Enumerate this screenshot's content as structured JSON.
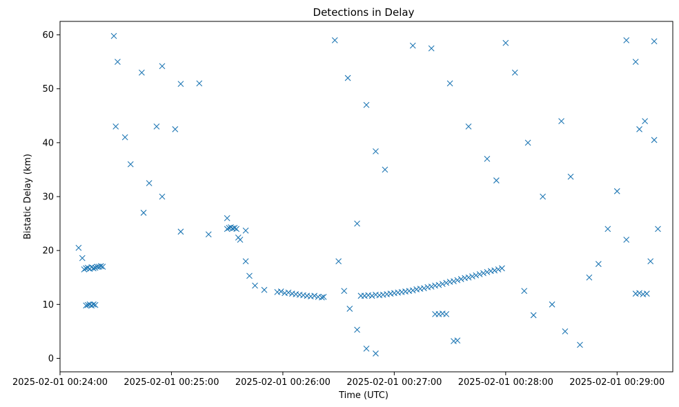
{
  "chart_data": {
    "type": "scatter",
    "title": "Detections in Delay",
    "xlabel": "Time (UTC)",
    "ylabel": "Bistatic Delay (km)",
    "marker": "x",
    "color": "#1f77b4",
    "grid": false,
    "legend": "none",
    "x_unit": "time (UTC)",
    "xlim": [
      "2025-02-01 00:24:00",
      "2025-02-01 00:29:30"
    ],
    "ylim": [
      -2.5,
      62.5
    ],
    "x_ticks": [
      "2025-02-01 00:24:00",
      "2025-02-01 00:25:00",
      "2025-02-01 00:26:00",
      "2025-02-01 00:27:00",
      "2025-02-01 00:28:00",
      "2025-02-01 00:29:00"
    ],
    "y_ticks": [
      "0",
      "10",
      "20",
      "30",
      "40",
      "50",
      "60"
    ],
    "series": [
      {
        "points": [
          [
            "00:24:10",
            20.5
          ],
          [
            "00:24:12",
            18.6
          ],
          [
            "00:24:13",
            16.5
          ],
          [
            "00:24:14",
            16.7
          ],
          [
            "00:24:15",
            16.8
          ],
          [
            "00:24:16",
            16.6
          ],
          [
            "00:24:17",
            16.9
          ],
          [
            "00:24:18",
            16.7
          ],
          [
            "00:24:19",
            16.8
          ],
          [
            "00:24:20",
            17.0
          ],
          [
            "00:24:21",
            17.0
          ],
          [
            "00:24:22",
            17.1
          ],
          [
            "00:24:23",
            17.0
          ],
          [
            "00:24:14",
            9.8
          ],
          [
            "00:24:15",
            9.9
          ],
          [
            "00:24:16",
            10.0
          ],
          [
            "00:24:17",
            9.8
          ],
          [
            "00:24:18",
            10.0
          ],
          [
            "00:24:19",
            9.9
          ],
          [
            "00:24:29",
            59.8
          ],
          [
            "00:24:31",
            55.0
          ],
          [
            "00:24:44",
            53.0
          ],
          [
            "00:24:55",
            54.2
          ],
          [
            "00:25:05",
            50.9
          ],
          [
            "00:25:15",
            51.0
          ],
          [
            "00:24:30",
            43.0
          ],
          [
            "00:24:35",
            41.0
          ],
          [
            "00:24:38",
            36.0
          ],
          [
            "00:24:48",
            32.5
          ],
          [
            "00:24:52",
            43.0
          ],
          [
            "00:25:02",
            42.5
          ],
          [
            "00:24:45",
            27.0
          ],
          [
            "00:24:55",
            30.0
          ],
          [
            "00:25:05",
            23.5
          ],
          [
            "00:25:20",
            23.0
          ],
          [
            "00:25:30",
            26.0
          ],
          [
            "00:25:40",
            23.7
          ],
          [
            "00:25:30",
            24.0
          ],
          [
            "00:25:31",
            24.2
          ],
          [
            "00:25:32",
            24.3
          ],
          [
            "00:25:33",
            24.1
          ],
          [
            "00:25:34",
            24.2
          ],
          [
            "00:25:35",
            24.0
          ],
          [
            "00:25:36",
            22.4
          ],
          [
            "00:25:37",
            22.0
          ],
          [
            "00:25:40",
            18.0
          ],
          [
            "00:25:42",
            15.3
          ],
          [
            "00:25:45",
            13.5
          ],
          [
            "00:25:50",
            12.7
          ],
          [
            "00:25:57",
            12.3
          ],
          [
            "00:25:59",
            12.4
          ],
          [
            "00:26:01",
            12.1
          ],
          [
            "00:26:03",
            12.2
          ],
          [
            "00:26:05",
            12.0
          ],
          [
            "00:26:07",
            11.9
          ],
          [
            "00:26:09",
            11.8
          ],
          [
            "00:26:11",
            11.7
          ],
          [
            "00:26:13",
            11.6
          ],
          [
            "00:26:15",
            11.5
          ],
          [
            "00:26:17",
            11.6
          ],
          [
            "00:26:19",
            11.4
          ],
          [
            "00:26:21",
            11.3
          ],
          [
            "00:26:22",
            11.4
          ],
          [
            "00:26:28",
            59.0
          ],
          [
            "00:26:35",
            52.0
          ],
          [
            "00:26:45",
            47.0
          ],
          [
            "00:26:50",
            38.4
          ],
          [
            "00:26:55",
            35.0
          ],
          [
            "00:26:40",
            25.0
          ],
          [
            "00:26:30",
            18.0
          ],
          [
            "00:26:33",
            12.5
          ],
          [
            "00:26:36",
            9.2
          ],
          [
            "00:26:40",
            5.3
          ],
          [
            "00:26:45",
            1.8
          ],
          [
            "00:26:50",
            0.9
          ],
          [
            "00:26:42",
            11.6
          ],
          [
            "00:26:44",
            11.6
          ],
          [
            "00:26:46",
            11.7
          ],
          [
            "00:26:48",
            11.6
          ],
          [
            "00:26:50",
            11.8
          ],
          [
            "00:26:52",
            11.7
          ],
          [
            "00:26:54",
            11.8
          ],
          [
            "00:26:56",
            11.9
          ],
          [
            "00:26:58",
            12.0
          ],
          [
            "00:27:00",
            12.1
          ],
          [
            "00:27:02",
            12.2
          ],
          [
            "00:27:04",
            12.3
          ],
          [
            "00:27:06",
            12.4
          ],
          [
            "00:27:08",
            12.5
          ],
          [
            "00:27:10",
            12.6
          ],
          [
            "00:27:12",
            12.8
          ],
          [
            "00:27:14",
            12.9
          ],
          [
            "00:27:16",
            13.0
          ],
          [
            "00:27:18",
            13.2
          ],
          [
            "00:27:20",
            13.3
          ],
          [
            "00:27:22",
            13.5
          ],
          [
            "00:27:24",
            13.6
          ],
          [
            "00:27:26",
            13.8
          ],
          [
            "00:27:28",
            14.0
          ],
          [
            "00:27:30",
            14.2
          ],
          [
            "00:27:32",
            14.3
          ],
          [
            "00:27:34",
            14.5
          ],
          [
            "00:27:36",
            14.7
          ],
          [
            "00:27:38",
            14.9
          ],
          [
            "00:27:40",
            15.0
          ],
          [
            "00:27:42",
            15.2
          ],
          [
            "00:27:44",
            15.4
          ],
          [
            "00:27:46",
            15.6
          ],
          [
            "00:27:48",
            15.8
          ],
          [
            "00:27:50",
            16.0
          ],
          [
            "00:27:52",
            16.2
          ],
          [
            "00:27:54",
            16.3
          ],
          [
            "00:27:56",
            16.5
          ],
          [
            "00:27:58",
            16.7
          ],
          [
            "00:27:22",
            8.2
          ],
          [
            "00:27:24",
            8.2
          ],
          [
            "00:27:26",
            8.3
          ],
          [
            "00:27:28",
            8.2
          ],
          [
            "00:27:32",
            3.2
          ],
          [
            "00:27:34",
            3.3
          ],
          [
            "00:27:10",
            58.0
          ],
          [
            "00:27:20",
            57.5
          ],
          [
            "00:27:30",
            51.0
          ],
          [
            "00:27:40",
            43.0
          ],
          [
            "00:27:50",
            37.0
          ],
          [
            "00:27:55",
            33.0
          ],
          [
            "00:28:00",
            58.5
          ],
          [
            "00:28:05",
            53.0
          ],
          [
            "00:28:12",
            40.0
          ],
          [
            "00:28:20",
            30.0
          ],
          [
            "00:28:30",
            44.0
          ],
          [
            "00:28:35",
            33.7
          ],
          [
            "00:28:10",
            12.5
          ],
          [
            "00:28:15",
            8.0
          ],
          [
            "00:28:25",
            10.0
          ],
          [
            "00:28:32",
            5.0
          ],
          [
            "00:28:40",
            2.5
          ],
          [
            "00:28:45",
            15.0
          ],
          [
            "00:28:50",
            17.5
          ],
          [
            "00:28:55",
            24.0
          ],
          [
            "00:29:00",
            31.0
          ],
          [
            "00:29:05",
            22.0
          ],
          [
            "00:29:10",
            12.0
          ],
          [
            "00:29:12",
            12.1
          ],
          [
            "00:29:14",
            11.9
          ],
          [
            "00:29:16",
            12.0
          ],
          [
            "00:29:05",
            59.0
          ],
          [
            "00:29:10",
            55.0
          ],
          [
            "00:29:12",
            42.5
          ],
          [
            "00:29:15",
            44.0
          ],
          [
            "00:29:20",
            58.8
          ],
          [
            "00:29:18",
            18.0
          ],
          [
            "00:29:22",
            24.0
          ],
          [
            "00:29:20",
            40.5
          ]
        ]
      }
    ]
  }
}
